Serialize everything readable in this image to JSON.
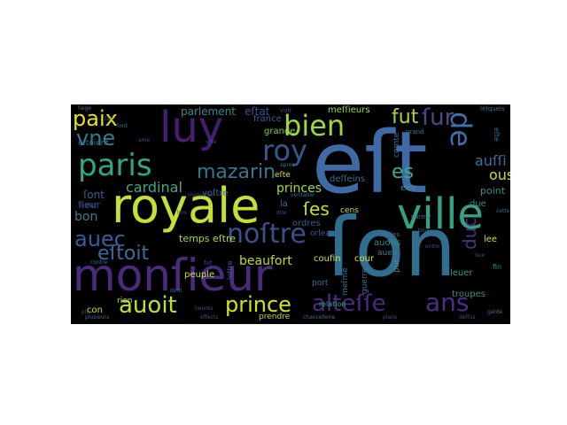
{
  "palette": {
    "background": "#000000",
    "page": "#ffffff"
  },
  "words": [
    {
      "text": "eſt",
      "color": "#3e6aa6"
    },
    {
      "text": "ſon",
      "color": "#2f6e8e"
    },
    {
      "text": "royale",
      "color": "#c5df35"
    },
    {
      "text": "monſieur",
      "color": "#4c2a7e"
    },
    {
      "text": "ville",
      "color": "#33a383"
    },
    {
      "text": "luy",
      "color": "#471c74"
    },
    {
      "text": "paris",
      "color": "#30a689"
    },
    {
      "text": "bien",
      "color": "#9dd93a"
    },
    {
      "text": "roy",
      "color": "#34598c"
    },
    {
      "text": "noſtre",
      "color": "#3b4f8b"
    },
    {
      "text": "auoit",
      "color": "#c2de34"
    },
    {
      "text": "prince",
      "color": "#d5e21a"
    },
    {
      "text": "alteſſe",
      "color": "#4a2b80"
    },
    {
      "text": "ans",
      "color": "#4e2c88"
    },
    {
      "text": "de",
      "color": "#3f6ea8"
    },
    {
      "text": "auec",
      "color": "#3d5b98"
    },
    {
      "text": "eſtoit",
      "color": "#3d6b99"
    },
    {
      "text": "vne",
      "color": "#2e7e8e"
    },
    {
      "text": "paix",
      "color": "#e6e21a"
    },
    {
      "text": "mazarin",
      "color": "#35778e"
    },
    {
      "text": "ſur",
      "color": "#4a4a86"
    },
    {
      "text": "fut",
      "color": "#9fd93c"
    },
    {
      "text": "es",
      "color": "#3fa887"
    },
    {
      "text": "ſes",
      "color": "#c6e030"
    },
    {
      "text": "duc",
      "color": "#4a3585"
    },
    {
      "text": "cardinal",
      "color": "#3fa989"
    },
    {
      "text": "ous",
      "color": "#c8e020"
    },
    {
      "text": "auſſi",
      "color": "#3d6f9b"
    },
    {
      "text": "princes",
      "color": "#a1da36"
    },
    {
      "text": "beaufort",
      "color": "#bddd2c"
    },
    {
      "text": "parlement",
      "color": "#3a8a8c"
    },
    {
      "text": "eſtat",
      "color": "#3e5290"
    },
    {
      "text": "bon",
      "color": "#3a7d8d"
    },
    {
      "text": "ſont",
      "color": "#355f8d"
    },
    {
      "text": "ſieur",
      "color": "#3a4b89"
    },
    {
      "text": "grande",
      "color": "#7cd24d"
    },
    {
      "text": "france",
      "color": "#3f5c8e"
    },
    {
      "text": "point",
      "color": "#3a8a8a"
    },
    {
      "text": "eſtre",
      "color": "#bfde2f"
    },
    {
      "text": "temps",
      "color": "#a6da2f"
    },
    {
      "text": "voſtre",
      "color": "#3f6e95"
    },
    {
      "text": "deſſeins",
      "color": "#3a6f93"
    },
    {
      "text": "meſſieurs",
      "color": "#a6da35"
    },
    {
      "text": "eſte",
      "color": "#d0e028"
    },
    {
      "text": "cour",
      "color": "#d5e03a"
    },
    {
      "text": "ordres",
      "color": "#3d5a91"
    },
    {
      "text": "auons",
      "color": "#3b8a8c"
    },
    {
      "text": "auee",
      "color": "#3a7a8e"
    },
    {
      "text": "leuer",
      "color": "#3b9b87"
    },
    {
      "text": "troupes",
      "color": "#3c8e8b"
    },
    {
      "text": "coufin",
      "color": "#d2e13a"
    },
    {
      "text": "peuple",
      "color": "#cbe03c"
    },
    {
      "text": "rien",
      "color": "#cbe03c"
    },
    {
      "text": "con",
      "color": "#c7df35"
    },
    {
      "text": "prendre",
      "color": "#b6dc36"
    },
    {
      "text": "lee",
      "color": "#cde03a"
    },
    {
      "text": "due",
      "color": "#3a8a8d"
    },
    {
      "text": "eee",
      "color": "#3e8f8a"
    },
    {
      "text": "port",
      "color": "#3d6f96"
    },
    {
      "text": "meſme",
      "color": "#3a7090"
    },
    {
      "text": "guerre",
      "color": "#3d6f90"
    },
    {
      "text": "comte",
      "color": "#3d6f96"
    },
    {
      "text": "la",
      "color": "#3d6f96"
    },
    {
      "text": "relation",
      "color": "#3a9e8a"
    },
    {
      "text": "orleans",
      "color": "#3d5a91"
    },
    {
      "text": "cens",
      "color": "#c5df35"
    },
    {
      "text": "lettre",
      "color": "#3d5a8e"
    },
    {
      "text": "pur",
      "color": "#3d9a8c"
    },
    {
      "text": "eſtoient",
      "color": "#3e6f96"
    },
    {
      "text": "lieur",
      "color": "#3e4f8a"
    },
    {
      "text": "eſte",
      "color": "#3e6f96"
    },
    {
      "text": "fin",
      "color": "#3a8a8c"
    },
    {
      "text": "fait",
      "color": "#3a4b89"
    },
    {
      "text": "fut",
      "color": "#3e4f8a"
    },
    {
      "text": "voir",
      "color": "#3e4f8a"
    },
    {
      "text": "grand",
      "color": "#3e6f96"
    },
    {
      "text": "leſquels",
      "color": "#3e6f96"
    },
    {
      "text": "parmy",
      "color": "#3e6f96"
    },
    {
      "text": "choſes",
      "color": "#3e6f96"
    },
    {
      "text": "ſiege",
      "color": "#3e6f96"
    },
    {
      "text": "plus",
      "color": "#3e4f8a"
    },
    {
      "text": "heures",
      "color": "#3e4f8a"
    },
    {
      "text": "plusieurs",
      "color": "#3e6f96"
    },
    {
      "text": "effects",
      "color": "#3e4f8a"
    },
    {
      "text": "chancellerie",
      "color": "#3e6f96"
    },
    {
      "text": "place",
      "color": "#3e4f8a"
    },
    {
      "text": "deſſus",
      "color": "#3e4f8a"
    },
    {
      "text": "garde",
      "color": "#3e6f96"
    },
    {
      "text": "ame",
      "color": "#3e4f8a"
    },
    {
      "text": "ſont",
      "color": "#3e6f96"
    },
    {
      "text": "ville",
      "color": "#3e4f8a"
    },
    {
      "text": "apres",
      "color": "#3e6f96"
    },
    {
      "text": "dire",
      "color": "#3e4f8a"
    },
    {
      "text": "tous",
      "color": "#3e6f96"
    },
    {
      "text": "lors",
      "color": "#3e4f8a"
    },
    {
      "text": "dont",
      "color": "#3e6f96"
    },
    {
      "text": "leur",
      "color": "#3e4f8a"
    },
    {
      "text": "contre",
      "color": "#3e6f96"
    },
    {
      "text": "entre",
      "color": "#3e4f8a"
    },
    {
      "text": "veritable",
      "color": "#3e6f96"
    },
    {
      "text": "marechal",
      "color": "#3e4f8a"
    },
    {
      "text": "cette",
      "color": "#3e6f96"
    }
  ]
}
